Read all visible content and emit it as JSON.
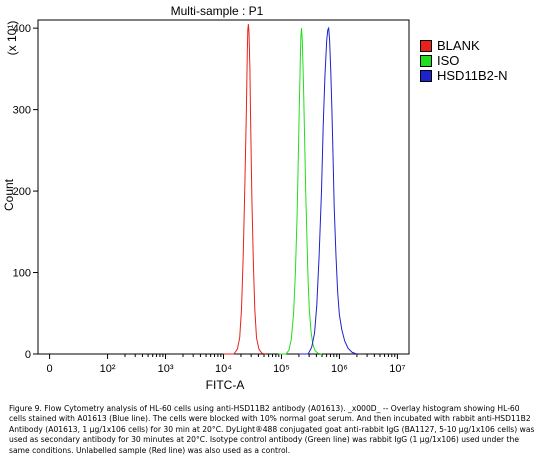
{
  "chart_data": {
    "type": "line",
    "title": "Multi-sample : P1",
    "xlabel": "FITC-A",
    "ylabel": "Count",
    "y_multiplier": "(x 10¹)",
    "x_scale": "log",
    "x_tick_labels": [
      "0",
      "10²",
      "10³",
      "10⁴",
      "10⁵",
      "10⁶",
      "10⁷"
    ],
    "x_tick_values": [
      0,
      100,
      1000,
      10000,
      100000,
      1000000,
      10000000
    ],
    "y_ticks": [
      0,
      100,
      200,
      300,
      400
    ],
    "ylim": [
      0,
      410
    ],
    "xlim_log10": [
      0.8,
      7.2
    ],
    "grid": false,
    "legend_position": "right",
    "series": [
      {
        "name": "BLANK",
        "color": "#e8211a",
        "points": [
          [
            4.0,
            0
          ],
          [
            4.18,
            0
          ],
          [
            4.24,
            6
          ],
          [
            4.28,
            20
          ],
          [
            4.31,
            55
          ],
          [
            4.34,
            120
          ],
          [
            4.37,
            210
          ],
          [
            4.395,
            300
          ],
          [
            4.41,
            370
          ],
          [
            4.42,
            398
          ],
          [
            4.43,
            405
          ],
          [
            4.44,
            395
          ],
          [
            4.455,
            350
          ],
          [
            4.47,
            280
          ],
          [
            4.49,
            190
          ],
          [
            4.515,
            110
          ],
          [
            4.54,
            55
          ],
          [
            4.57,
            20
          ],
          [
            4.61,
            6
          ],
          [
            4.66,
            1
          ],
          [
            4.72,
            0
          ]
        ]
      },
      {
        "name": "ISO",
        "color": "#22dd1e",
        "points": [
          [
            4.95,
            0
          ],
          [
            5.08,
            0
          ],
          [
            5.13,
            5
          ],
          [
            5.17,
            18
          ],
          [
            5.21,
            50
          ],
          [
            5.24,
            100
          ],
          [
            5.27,
            170
          ],
          [
            5.29,
            240
          ],
          [
            5.31,
            310
          ],
          [
            5.325,
            360
          ],
          [
            5.335,
            390
          ],
          [
            5.345,
            400
          ],
          [
            5.36,
            385
          ],
          [
            5.38,
            330
          ],
          [
            5.4,
            260
          ],
          [
            5.42,
            195
          ],
          [
            5.44,
            140
          ],
          [
            5.46,
            90
          ],
          [
            5.48,
            55
          ],
          [
            5.51,
            28
          ],
          [
            5.54,
            12
          ],
          [
            5.58,
            4
          ],
          [
            5.63,
            1
          ],
          [
            5.7,
            0
          ]
        ]
      },
      {
        "name": "HSD11B2-N",
        "color": "#1d22cc",
        "points": [
          [
            5.3,
            0
          ],
          [
            5.46,
            0
          ],
          [
            5.52,
            8
          ],
          [
            5.57,
            25
          ],
          [
            5.61,
            60
          ],
          [
            5.65,
            120
          ],
          [
            5.69,
            200
          ],
          [
            5.72,
            280
          ],
          [
            5.75,
            340
          ],
          [
            5.78,
            385
          ],
          [
            5.8,
            398
          ],
          [
            5.815,
            400
          ],
          [
            5.83,
            385
          ],
          [
            5.85,
            350
          ],
          [
            5.87,
            300
          ],
          [
            5.89,
            240
          ],
          [
            5.91,
            180
          ],
          [
            5.94,
            120
          ],
          [
            5.97,
            75
          ],
          [
            6.0,
            48
          ],
          [
            6.04,
            30
          ],
          [
            6.09,
            16
          ],
          [
            6.15,
            7
          ],
          [
            6.22,
            2
          ],
          [
            6.3,
            0
          ]
        ]
      }
    ]
  },
  "caption": "Figure 9. Flow Cytometry analysis of HL-60 cells using anti-HSD11B2 antibody (A01613). _x000D_ -- Overlay histogram showing HL-60 cells stained with A01613 (Blue line). The cells were blocked with 10% normal goat serum. And then incubated with rabbit anti-HSD11B2 Antibody (A01613, 1 μg/1x106 cells) for 30 min at 20°C. DyLight®488 conjugated goat anti-rabbit IgG (BA1127, 5-10 μg/1x106 cells) was used as secondary antibody for 30 minutes at 20°C. Isotype control antibody (Green line) was rabbit IgG (1 μg/1x106) used under the same conditions. Unlabelled sample (Red line) was also used as a control."
}
